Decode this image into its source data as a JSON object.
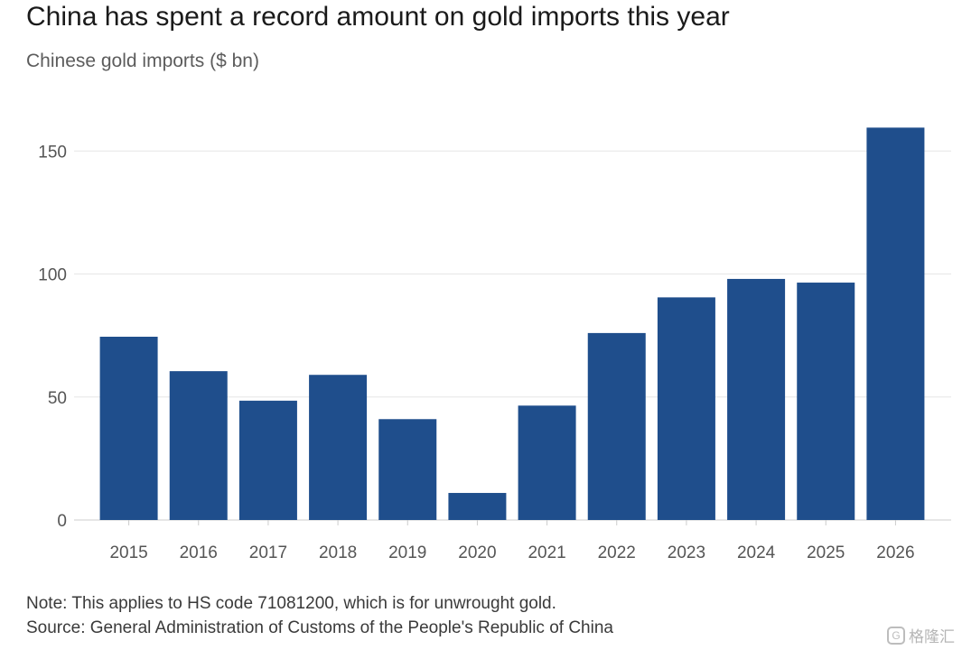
{
  "title": "China has spent a record amount on gold imports this year",
  "subtitle": "Chinese gold imports ($ bn)",
  "note": "Note: This applies to HS code 71081200, which is for unwrought gold.",
  "source": "Source: General Administration of Customs of the People's Republic of China",
  "watermark": {
    "icon": "G",
    "text": "格隆汇"
  },
  "colors": {
    "bar": "#1f4e8c",
    "grid": "#e6e6e6",
    "tick_text": "#555555",
    "axis": "#cccccc"
  },
  "chart_data": {
    "type": "bar",
    "categories": [
      "2015",
      "2016",
      "2017",
      "2018",
      "2019",
      "2020",
      "2021",
      "2022",
      "2023",
      "2024",
      "2025",
      "2026"
    ],
    "values": [
      74.5,
      60.5,
      48.5,
      59,
      41,
      11,
      46.5,
      76,
      90.5,
      98,
      96.5,
      159.5
    ],
    "yticks": [
      0,
      50,
      100,
      150
    ],
    "ylim": [
      0,
      160
    ],
    "xlabel": "",
    "ylabel": "",
    "grid": true
  }
}
